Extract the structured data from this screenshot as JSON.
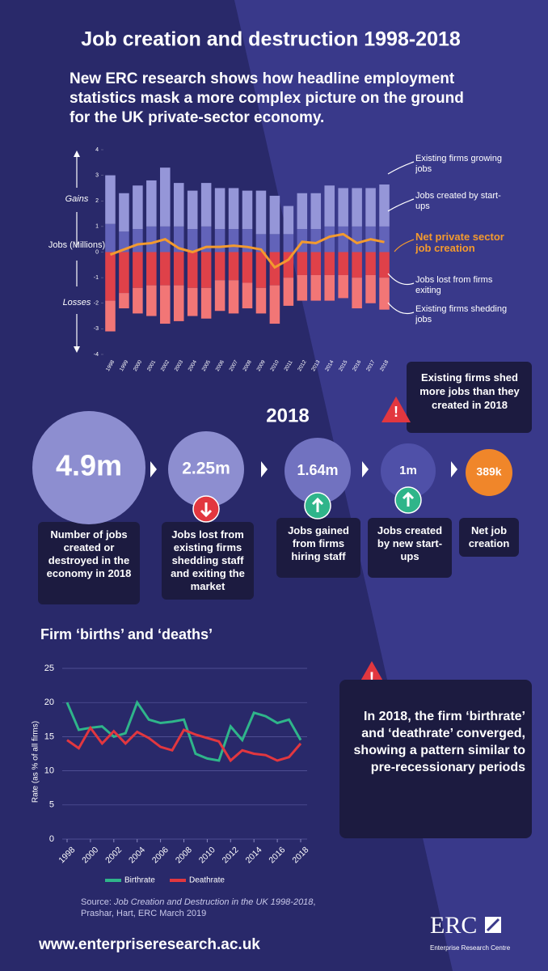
{
  "header": {
    "title": "Job creation and destruction 1998-2018",
    "subtitle": "New ERC research shows how headline employment statistics mask a more complex picture on the ground for the UK private-sector economy."
  },
  "chart_data": [
    {
      "type": "bar",
      "stacked": true,
      "ylabel": "Jobs (Millions)",
      "annotations": [
        "Gains",
        "Losses"
      ],
      "categories": [
        "1998",
        "1999",
        "2000",
        "2001",
        "2002",
        "2003",
        "2004",
        "2005",
        "2006",
        "2007",
        "2008",
        "2009",
        "2010",
        "2011",
        "2012",
        "2013",
        "2014",
        "2015",
        "2016",
        "2017",
        "2018"
      ],
      "series": [
        {
          "name": "Jobs created by start-ups",
          "color": "#6263b9",
          "values": [
            1.1,
            0.8,
            0.9,
            1.0,
            1.0,
            1.0,
            0.9,
            1.0,
            0.9,
            0.9,
            0.9,
            0.7,
            0.7,
            0.7,
            0.9,
            0.9,
            1.0,
            1.0,
            1.0,
            1.0,
            1.0
          ]
        },
        {
          "name": "Existing firms growing jobs",
          "color": "#9596d8",
          "values": [
            1.9,
            1.5,
            1.7,
            1.8,
            2.3,
            1.7,
            1.5,
            1.7,
            1.6,
            1.6,
            1.5,
            1.7,
            1.5,
            1.1,
            1.4,
            1.4,
            1.6,
            1.5,
            1.5,
            1.5,
            1.64
          ]
        },
        {
          "name": "Jobs lost from firms exiting",
          "color": "#df4149",
          "values": [
            -1.9,
            -1.6,
            -1.4,
            -1.3,
            -1.3,
            -1.3,
            -1.4,
            -1.4,
            -1.1,
            -1.1,
            -1.2,
            -1.4,
            -1.3,
            -1.0,
            -0.9,
            -0.9,
            -0.9,
            -0.9,
            -1.0,
            -0.9,
            -1.0
          ]
        },
        {
          "name": "Existing firms shedding jobs",
          "color": "#f27676",
          "values": [
            -1.2,
            -0.6,
            -1.0,
            -1.2,
            -1.5,
            -1.4,
            -1.1,
            -1.2,
            -1.2,
            -1.3,
            -1.0,
            -1.0,
            -1.5,
            -1.1,
            -1.0,
            -1.0,
            -1.0,
            -0.9,
            -1.2,
            -1.1,
            -1.25
          ]
        },
        {
          "name": "Net private sector job creation",
          "type": "line",
          "color": "#f39a2e",
          "values": [
            -0.1,
            0.1,
            0.3,
            0.35,
            0.5,
            0.15,
            0.0,
            0.2,
            0.2,
            0.25,
            0.2,
            0.1,
            -0.6,
            -0.3,
            0.4,
            0.35,
            0.6,
            0.7,
            0.35,
            0.5,
            0.389
          ]
        }
      ],
      "ylim": [
        -4,
        4
      ],
      "yticks": [
        -4,
        -3,
        -2,
        -1,
        0,
        1,
        2,
        3,
        4
      ]
    },
    {
      "type": "line",
      "title": "Firm ‘births’ and ‘deaths’",
      "ylabel": "Rate (as % of all firms)",
      "x": [
        1998,
        1999,
        2000,
        2001,
        2002,
        2003,
        2004,
        2005,
        2006,
        2007,
        2008,
        2009,
        2010,
        2011,
        2012,
        2013,
        2014,
        2015,
        2016,
        2017,
        2018
      ],
      "series": [
        {
          "name": "Birthrate",
          "color": "#2fb58a",
          "values": [
            20,
            16,
            16.3,
            16.5,
            15,
            15.5,
            20,
            17.5,
            17,
            17.2,
            17.5,
            12.5,
            11.8,
            11.5,
            16.5,
            14.5,
            18.5,
            18,
            17,
            17.5,
            14.5
          ]
        },
        {
          "name": "Deathrate",
          "color": "#e2373f",
          "values": [
            14.5,
            13.3,
            16.3,
            14,
            15.8,
            14,
            15.7,
            14.8,
            13.5,
            13,
            16,
            15.3,
            14.8,
            14.3,
            11.5,
            13,
            12.5,
            12.3,
            11.5,
            12,
            14
          ]
        }
      ],
      "xlim": [
        1998,
        2018
      ],
      "xticks": [
        1998,
        2000,
        2002,
        2004,
        2006,
        2008,
        2010,
        2012,
        2014,
        2016,
        2018
      ],
      "ylim": [
        0,
        25
      ],
      "yticks": [
        0,
        5,
        10,
        15,
        20,
        25
      ],
      "grid": true,
      "legend": "bottom"
    }
  ],
  "stats": {
    "year": "2018",
    "items": [
      {
        "value": "4.9m",
        "label": "Number of jobs created or destroyed in the economy in 2018"
      },
      {
        "value": "2.25m",
        "label": "Jobs lost from existing firms shedding staff and exiting the market"
      },
      {
        "value": "1.64m",
        "label": "Jobs gained from firms hiring staff"
      },
      {
        "value": "1m",
        "label": "Jobs created by new start-ups"
      },
      {
        "value": "389k",
        "label": "Net job creation"
      }
    ],
    "callout": "Existing firms shed more jobs than they created in 2018"
  },
  "callout": "In 2018, the firm ‘birthrate’ and ‘deathrate’ converged, showing a pattern similar to pre-recessionary periods",
  "footer": {
    "source_prefix": "Source:",
    "source_title": "Job Creation and Destruction in the UK 1998-2018",
    "source_rest": ", Prashar, Hart, ERC March 2019",
    "url": "www.enterpriseresearch.ac.uk",
    "logo": "ERC",
    "logo_sub": "Enterprise Research Centre"
  }
}
